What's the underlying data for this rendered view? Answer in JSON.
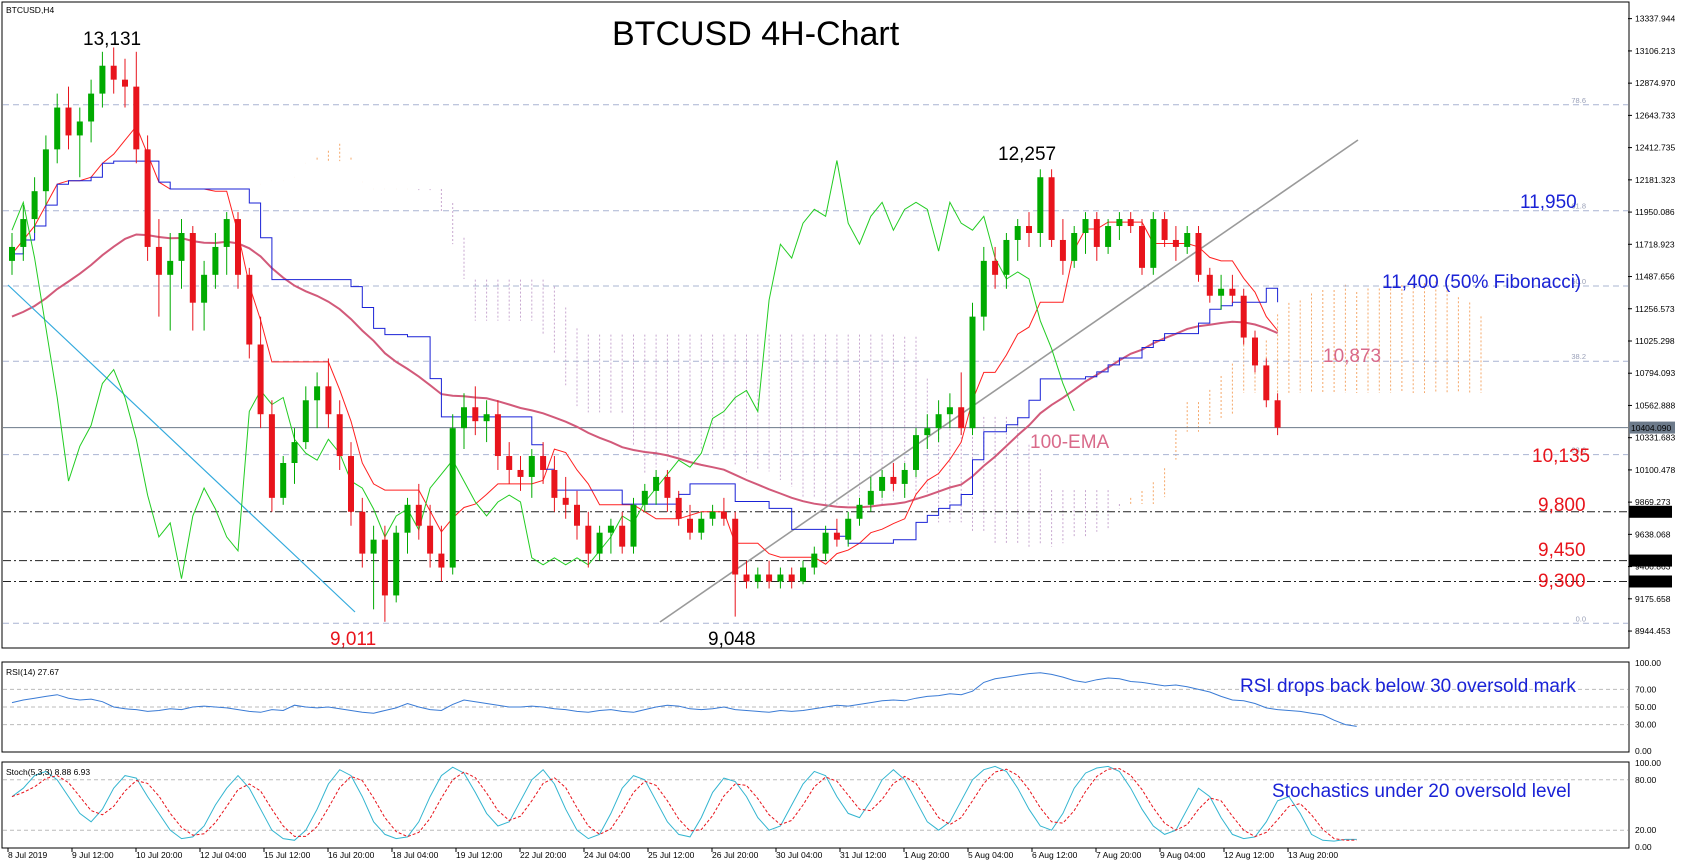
{
  "symbol_label": "BTCUSD,H4",
  "chart_data": {
    "type": "candlestick",
    "title": "BTCUSD 4H-Chart",
    "main_panel": {
      "ylim": [
        8830,
        13450
      ],
      "y_ticks": [
        "13337.944",
        "13106.213",
        "12874.970",
        "12643.733",
        "12412.735",
        "12181.323",
        "11950.086",
        "11718.923",
        "11487.656",
        "11256.573",
        "11025.298",
        "10794.093",
        "10562.888",
        "10331.683",
        "10100.478",
        "9869.273",
        "9638.068",
        "9406.863",
        "9175.658",
        "8944.453"
      ],
      "current_price": "10404.090",
      "candles": [
        [
          11600,
          11800,
          11500,
          11700
        ],
        [
          11700,
          12000,
          11600,
          11900
        ],
        [
          11900,
          12200,
          11800,
          12100
        ],
        [
          12100,
          12500,
          12000,
          12400
        ],
        [
          12400,
          12800,
          12300,
          12700
        ],
        [
          12700,
          12850,
          12400,
          12500
        ],
        [
          12500,
          12700,
          12200,
          12600
        ],
        [
          12600,
          12900,
          12450,
          12800
        ],
        [
          12800,
          13100,
          12700,
          13000
        ],
        [
          13000,
          13131,
          12800,
          12900
        ],
        [
          12900,
          13050,
          12700,
          12850
        ],
        [
          12850,
          13100,
          12300,
          12400
        ],
        [
          12400,
          12500,
          11600,
          11700
        ],
        [
          11700,
          11900,
          11200,
          11500
        ],
        [
          11500,
          11800,
          11100,
          11600
        ],
        [
          11600,
          11900,
          11400,
          11800
        ],
        [
          11800,
          11850,
          11100,
          11300
        ],
        [
          11300,
          11600,
          11100,
          11500
        ],
        [
          11500,
          11800,
          11400,
          11700
        ],
        [
          11700,
          11950,
          11500,
          11900
        ],
        [
          11900,
          11950,
          11400,
          11500
        ],
        [
          11500,
          11550,
          10900,
          11000
        ],
        [
          11000,
          11200,
          10400,
          10500
        ],
        [
          10500,
          10600,
          9800,
          9900
        ],
        [
          9900,
          10200,
          9850,
          10150
        ],
        [
          10150,
          10400,
          10000,
          10300
        ],
        [
          10300,
          10700,
          10250,
          10600
        ],
        [
          10600,
          10800,
          10400,
          10700
        ],
        [
          10700,
          10900,
          10400,
          10500
        ],
        [
          10500,
          10600,
          10100,
          10200
        ],
        [
          10200,
          10300,
          9700,
          9800
        ],
        [
          9800,
          9900,
          9400,
          9500
        ],
        [
          9500,
          9700,
          9100,
          9600
        ],
        [
          9600,
          9700,
          9011,
          9200
        ],
        [
          9200,
          9700,
          9150,
          9650
        ],
        [
          9650,
          9900,
          9500,
          9850
        ],
        [
          9850,
          10000,
          9600,
          9700
        ],
        [
          9700,
          9850,
          9400,
          9500
        ],
        [
          9500,
          9700,
          9300,
          9400
        ],
        [
          9400,
          10500,
          9350,
          10400
        ],
        [
          10400,
          10650,
          10250,
          10550
        ],
        [
          10550,
          10700,
          10350,
          10450
        ],
        [
          10450,
          10600,
          10300,
          10500
        ],
        [
          10500,
          10600,
          10100,
          10200
        ],
        [
          10200,
          10300,
          10000,
          10100
        ],
        [
          10100,
          10200,
          9950,
          10050
        ],
        [
          10050,
          10250,
          9900,
          10200
        ],
        [
          10200,
          10300,
          10000,
          10100
        ],
        [
          10100,
          10200,
          9800,
          9900
        ],
        [
          9900,
          10050,
          9750,
          9850
        ],
        [
          9850,
          9950,
          9600,
          9700
        ],
        [
          9700,
          9800,
          9400,
          9500
        ],
        [
          9500,
          9700,
          9450,
          9650
        ],
        [
          9650,
          9750,
          9500,
          9700
        ],
        [
          9700,
          9800,
          9500,
          9550
        ],
        [
          9550,
          9900,
          9500,
          9850
        ],
        [
          9850,
          10000,
          9800,
          9950
        ],
        [
          9950,
          10100,
          9850,
          10050
        ],
        [
          10050,
          10100,
          9800,
          9900
        ],
        [
          9900,
          9950,
          9700,
          9750
        ],
        [
          9750,
          9850,
          9600,
          9650
        ],
        [
          9650,
          9800,
          9600,
          9750
        ],
        [
          9750,
          9850,
          9700,
          9800
        ],
        [
          9800,
          9900,
          9700,
          9750
        ],
        [
          9750,
          9800,
          9048,
          9350
        ],
        [
          9350,
          9450,
          9250,
          9300
        ],
        [
          9300,
          9400,
          9250,
          9350
        ],
        [
          9350,
          9450,
          9250,
          9300
        ],
        [
          9300,
          9400,
          9250,
          9350
        ],
        [
          9350,
          9400,
          9250,
          9300
        ],
        [
          9300,
          9450,
          9280,
          9400
        ],
        [
          9400,
          9550,
          9350,
          9500
        ],
        [
          9500,
          9700,
          9450,
          9650
        ],
        [
          9650,
          9750,
          9550,
          9600
        ],
        [
          9600,
          9800,
          9550,
          9750
        ],
        [
          9750,
          9900,
          9700,
          9850
        ],
        [
          9850,
          10050,
          9800,
          9950
        ],
        [
          9950,
          10100,
          9900,
          10050
        ],
        [
          10050,
          10150,
          9950,
          10000
        ],
        [
          10000,
          10150,
          9900,
          10100
        ],
        [
          10100,
          10400,
          10050,
          10350
        ],
        [
          10350,
          10500,
          10250,
          10400
        ],
        [
          10400,
          10600,
          10300,
          10500
        ],
        [
          10500,
          10650,
          10400,
          10550
        ],
        [
          10550,
          10800,
          10350,
          10400
        ],
        [
          10400,
          11300,
          10350,
          11200
        ],
        [
          11200,
          11700,
          11100,
          11600
        ],
        [
          11600,
          11700,
          11400,
          11500
        ],
        [
          11500,
          11800,
          11400,
          11750
        ],
        [
          11750,
          11900,
          11600,
          11850
        ],
        [
          11850,
          11950,
          11700,
          11800
        ],
        [
          11800,
          12257,
          11700,
          12200
        ],
        [
          12200,
          12257,
          11700,
          11750
        ],
        [
          11750,
          11900,
          11500,
          11600
        ],
        [
          11600,
          11850,
          11550,
          11800
        ],
        [
          11800,
          11950,
          11650,
          11900
        ],
        [
          11900,
          11950,
          11600,
          11700
        ],
        [
          11700,
          11900,
          11650,
          11850
        ],
        [
          11850,
          11950,
          11750,
          11900
        ],
        [
          11900,
          11950,
          11800,
          11850
        ],
        [
          11850,
          11900,
          11500,
          11550
        ],
        [
          11550,
          11950,
          11500,
          11900
        ],
        [
          11900,
          11950,
          11700,
          11750
        ],
        [
          11750,
          11850,
          11600,
          11700
        ],
        [
          11700,
          11850,
          11650,
          11800
        ],
        [
          11800,
          11850,
          11450,
          11500
        ],
        [
          11500,
          11550,
          11300,
          11350
        ],
        [
          11350,
          11500,
          11250,
          11400
        ],
        [
          11400,
          11500,
          11300,
          11350
        ],
        [
          11350,
          11400,
          11000,
          11050
        ],
        [
          11050,
          11100,
          10800,
          10850
        ],
        [
          10850,
          10900,
          10550,
          10600
        ],
        [
          10600,
          10650,
          10350,
          10404
        ]
      ]
    },
    "x_ticks": [
      "8 Jul 2019",
      "9 Jul 12:00",
      "10 Jul 20:00",
      "12 Jul 04:00",
      "15 Jul 12:00",
      "16 Jul 20:00",
      "18 Jul 04:00",
      "19 Jul 12:00",
      "22 Jul 20:00",
      "24 Jul 04:00",
      "25 Jul 12:00",
      "26 Jul 20:00",
      "30 Jul 04:00",
      "31 Jul 12:00",
      "1 Aug 20:00",
      "5 Aug 04:00",
      "6 Aug 12:00",
      "7 Aug 20:00",
      "9 Aug 04:00",
      "12 Aug 12:00",
      "13 Aug 20:00"
    ],
    "fib_levels": [
      {
        "label": "78.6",
        "value": 12720
      },
      {
        "label": "61.8",
        "value": 11960
      },
      {
        "label": "50.0",
        "value": 11420
      },
      {
        "label": "38.2",
        "value": 10880
      },
      {
        "label": "23.6",
        "value": 10210
      },
      {
        "label": "0.0",
        "value": 9000
      }
    ],
    "horizontal_lines": [
      {
        "label": "9800.000",
        "value": 9800
      },
      {
        "label": "9450.000",
        "value": 9450
      },
      {
        "label": "9300.000",
        "value": 9300
      }
    ],
    "annotations": [
      {
        "text": "13,131",
        "color": "#000000"
      },
      {
        "text": "9,011",
        "color": "#e8141c"
      },
      {
        "text": "9,048",
        "color": "#000000"
      },
      {
        "text": "12,257",
        "color": "#000000"
      },
      {
        "text": "11,950",
        "color": "#1a22d6"
      },
      {
        "text": "11,400 (50% Fibonacci)",
        "color": "#1a22d6"
      },
      {
        "text": "10,873",
        "color": "#d96a8a"
      },
      {
        "text": "100-EMA",
        "color": "#d96a8a"
      },
      {
        "text": "10,135",
        "color": "#e8141c"
      },
      {
        "text": "9,800",
        "color": "#e8141c"
      },
      {
        "text": "9,450",
        "color": "#e8141c"
      },
      {
        "text": "9,300",
        "color": "#e8141c"
      }
    ],
    "rsi_panel": {
      "label": "RSI(14) 27.67",
      "y_ticks": [
        "100.00",
        "70.00",
        "50.00",
        "30.00",
        "0.00"
      ],
      "note": "RSI drops back below 30 oversold mark",
      "values": [
        55,
        58,
        60,
        62,
        64,
        60,
        58,
        59,
        56,
        50,
        48,
        47,
        45,
        46,
        48,
        47,
        50,
        51,
        50,
        49,
        47,
        45,
        44,
        47,
        46,
        52,
        50,
        49,
        50,
        48,
        46,
        44,
        43,
        46,
        49,
        54,
        50,
        47,
        46,
        53,
        58,
        56,
        54,
        52,
        50,
        50,
        51,
        50,
        48,
        47,
        45,
        44,
        46,
        47,
        45,
        44,
        47,
        50,
        52,
        51,
        48,
        47,
        48,
        50,
        47,
        46,
        45,
        44,
        46,
        45,
        46,
        48,
        50,
        52,
        51,
        53,
        55,
        57,
        58,
        57,
        60,
        62,
        63,
        65,
        64,
        68,
        78,
        82,
        84,
        86,
        88,
        89,
        87,
        84,
        80,
        78,
        81,
        83,
        82,
        79,
        78,
        76,
        74,
        75,
        73,
        70,
        67,
        62,
        58,
        57,
        54,
        49,
        47,
        46,
        45,
        43,
        41,
        35,
        30,
        28
      ]
    },
    "stoch_panel": {
      "label": "Stoch(5,3,3) 8.88 6.93",
      "y_ticks": [
        "100.00",
        "80.00",
        "20.00",
        "0.00"
      ],
      "note": "Stochastics under 20 oversold level",
      "k_values": [
        60,
        70,
        85,
        90,
        80,
        60,
        40,
        30,
        45,
        70,
        85,
        82,
        60,
        40,
        20,
        10,
        12,
        25,
        50,
        70,
        85,
        70,
        45,
        20,
        10,
        8,
        20,
        45,
        75,
        92,
        85,
        60,
        30,
        15,
        10,
        12,
        30,
        60,
        85,
        95,
        88,
        65,
        40,
        25,
        30,
        55,
        80,
        92,
        75,
        45,
        20,
        10,
        15,
        40,
        70,
        85,
        80,
        55,
        30,
        15,
        12,
        35,
        65,
        82,
        78,
        60,
        35,
        20,
        25,
        50,
        75,
        90,
        85,
        60,
        40,
        35,
        55,
        80,
        92,
        80,
        55,
        30,
        20,
        30,
        55,
        80,
        92,
        96,
        90,
        70,
        45,
        25,
        20,
        40,
        70,
        88,
        94,
        96,
        90,
        70,
        45,
        25,
        15,
        20,
        45,
        70,
        60,
        35,
        15,
        10,
        12,
        30,
        55,
        60,
        40,
        15,
        8,
        7,
        9,
        9
      ]
    }
  },
  "colors": {
    "bull_candle": "#00aa00",
    "bear_candle": "#e8141c",
    "tenkan": "#ff2020",
    "kijun": "#1a22d6",
    "chikou": "#22cc22",
    "ema100": "#d25a7a",
    "trend_up": "#9a9a9a",
    "trend_down": "#33aadd",
    "kumo_bull": "#f5a86a",
    "kumo_bear": "#c8a8d0",
    "rsi_line": "#3a7bd5",
    "stoch_k": "#33b5d0",
    "stoch_d": "#e8141c"
  }
}
